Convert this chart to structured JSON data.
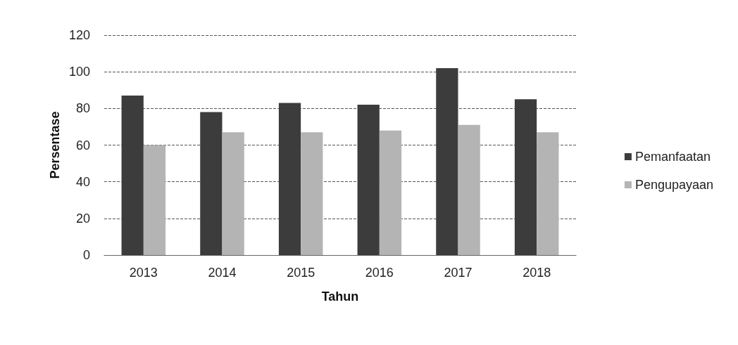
{
  "chart_data": {
    "type": "bar",
    "xlabel": "Tahun",
    "ylabel": "Persentase",
    "categories": [
      "2013",
      "2014",
      "2015",
      "2016",
      "2017",
      "2018"
    ],
    "series": [
      {
        "name": "Pemanfaatan",
        "color": "#3c3c3c",
        "values": [
          87,
          78,
          83,
          82,
          102,
          85
        ]
      },
      {
        "name": "Pengupayaan",
        "color": "#b4b4b4",
        "values": [
          60,
          67,
          67,
          68,
          71,
          67
        ]
      }
    ],
    "ylim": [
      0,
      120
    ],
    "yticks": [
      0,
      20,
      40,
      60,
      80,
      100,
      120
    ],
    "grid": "y",
    "legend": "right"
  }
}
